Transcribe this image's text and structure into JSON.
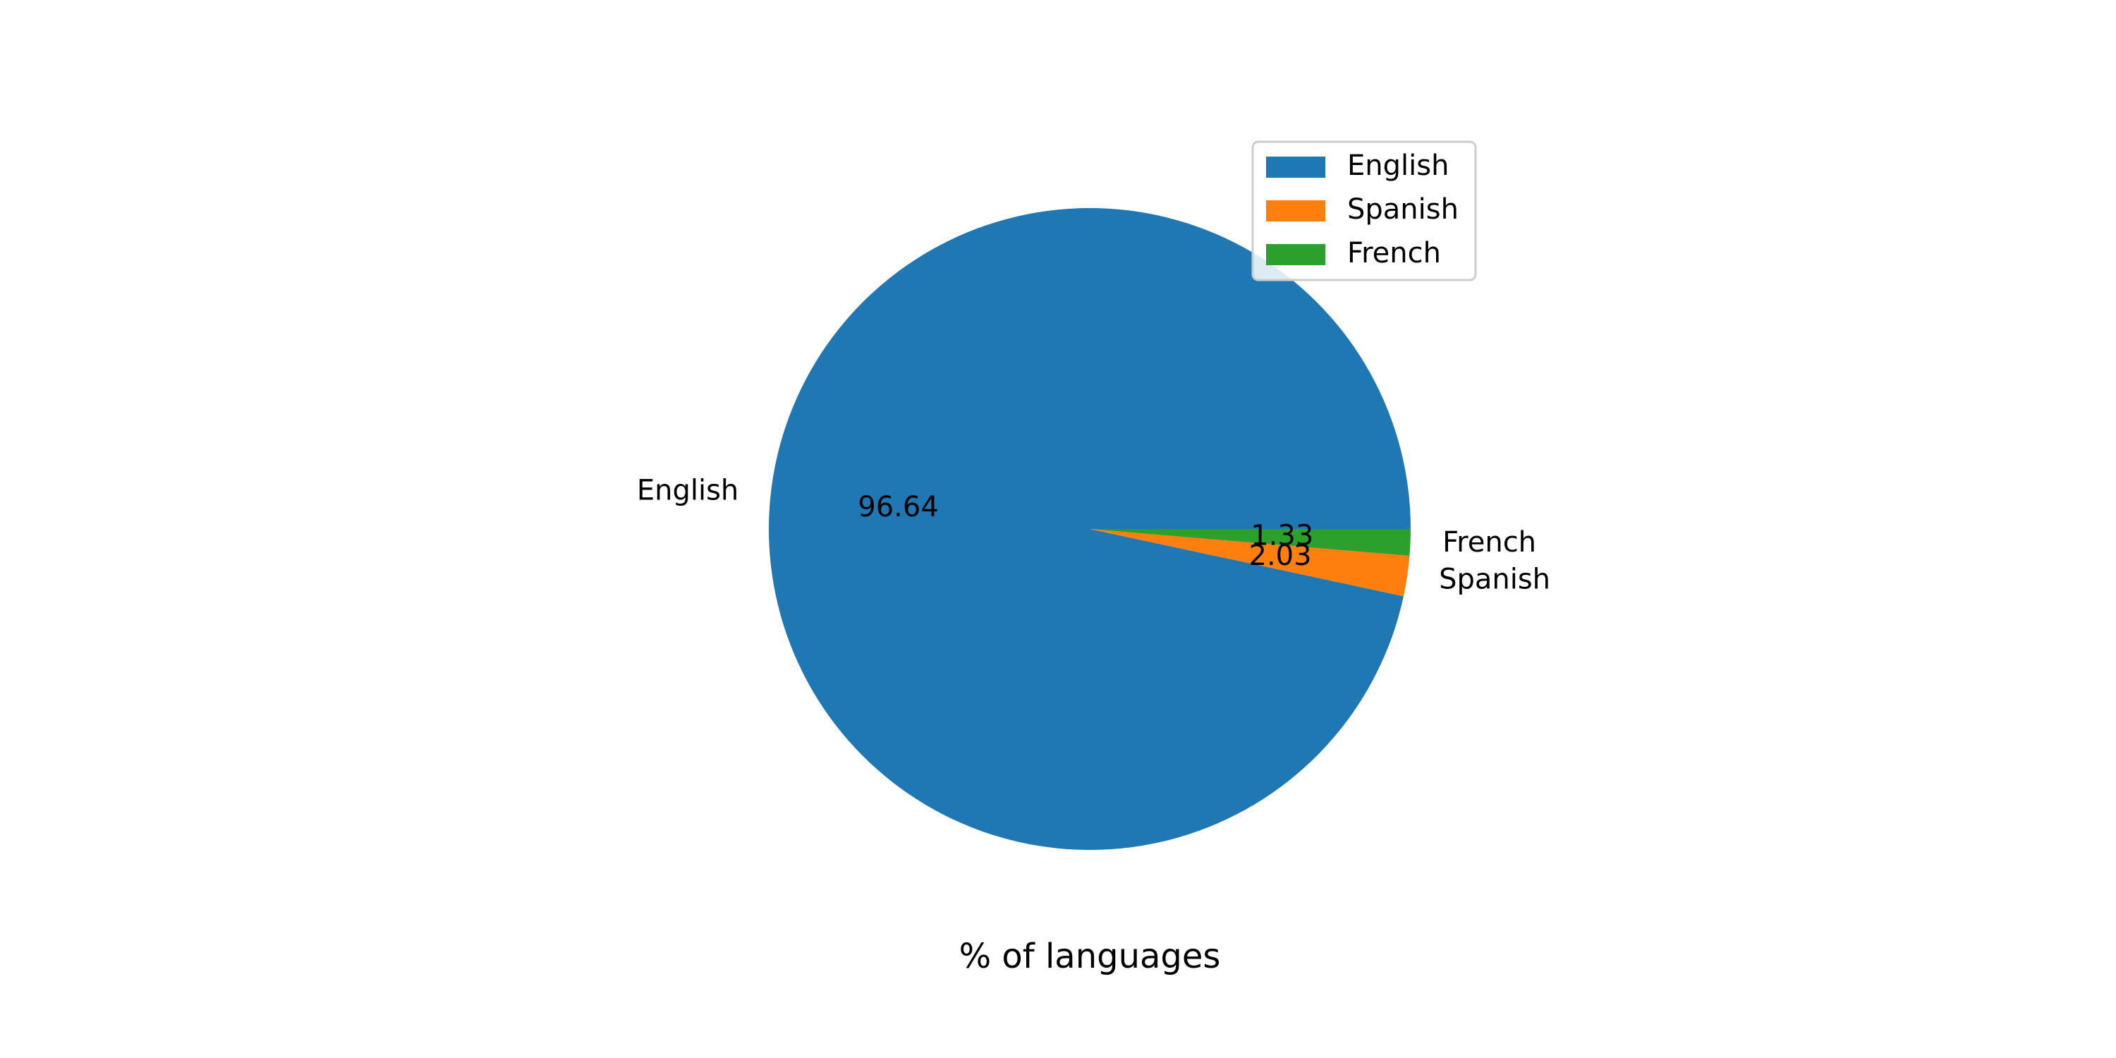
{
  "chart_data": {
    "type": "pie",
    "categories": [
      "English",
      "Spanish",
      "French"
    ],
    "values": [
      96.64,
      2.03,
      1.33
    ],
    "value_labels": [
      "96.64",
      "2.03",
      "1.33"
    ],
    "colors": [
      "#1f77b4",
      "#ff7f0e",
      "#2ca02c"
    ],
    "xlabel": "% of languages",
    "legend": {
      "placement": "upper-right",
      "entries": [
        "English",
        "Spanish",
        "French"
      ]
    }
  }
}
